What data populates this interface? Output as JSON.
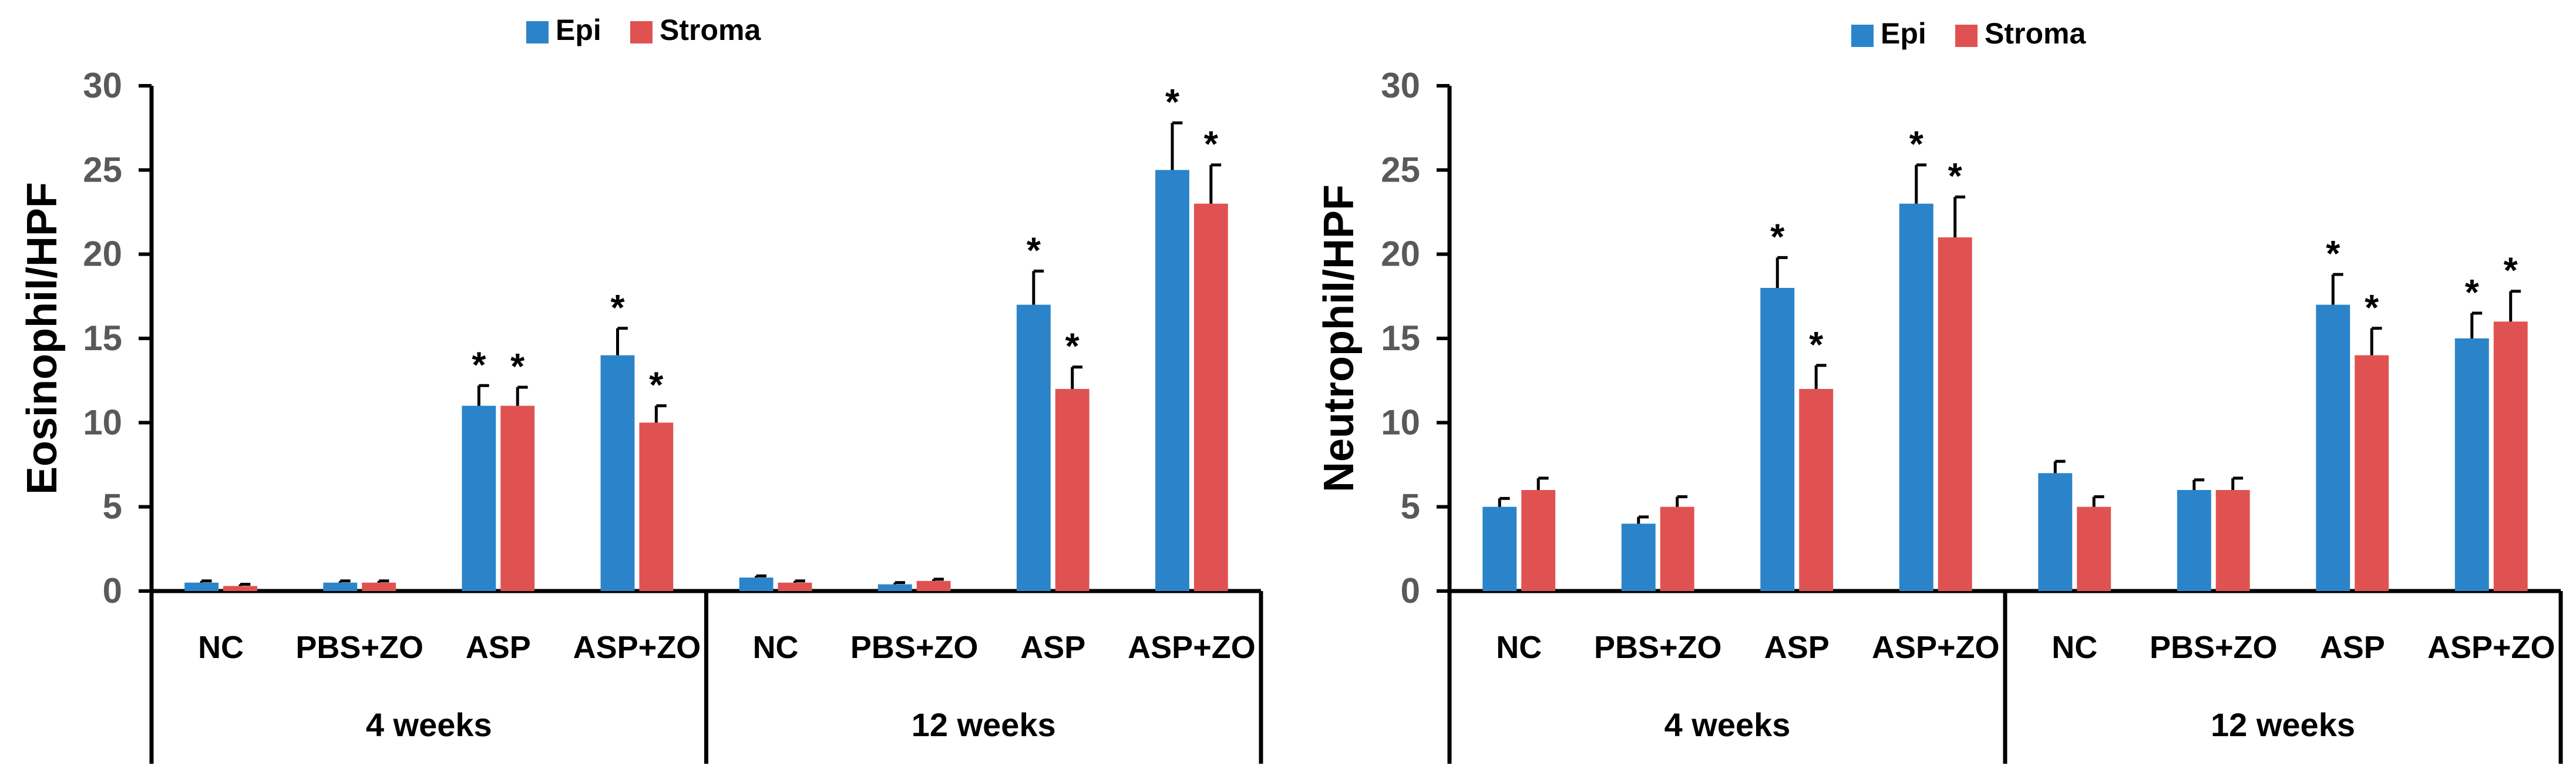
{
  "chart_data": [
    {
      "type": "bar",
      "ylabel": "Eosinophil/HPF",
      "ylim": [
        0,
        30
      ],
      "yticks": [
        0,
        5,
        10,
        15,
        20,
        25,
        30
      ],
      "groups": [
        {
          "label": "4 weeks",
          "categories": [
            "NC",
            "PBS+ZO",
            "ASP",
            "ASP+ZO"
          ]
        },
        {
          "label": "12 weeks",
          "categories": [
            "NC",
            "PBS+ZO",
            "ASP",
            "ASP+ZO"
          ]
        }
      ],
      "series": [
        {
          "name": "Epi",
          "color": "#2b84c9",
          "values": [
            0.5,
            0.5,
            11,
            14,
            0.8,
            0.4,
            17,
            25
          ],
          "errors": [
            0.1,
            0.1,
            1.2,
            1.6,
            0.1,
            0.1,
            2.0,
            2.8
          ],
          "significant": [
            false,
            false,
            true,
            true,
            false,
            false,
            true,
            true
          ]
        },
        {
          "name": "Stroma",
          "color": "#e05252",
          "values": [
            0.3,
            0.5,
            11,
            10,
            0.5,
            0.6,
            12,
            23
          ],
          "errors": [
            0.1,
            0.1,
            1.1,
            1.0,
            0.1,
            0.1,
            1.3,
            2.3
          ],
          "significant": [
            false,
            false,
            true,
            true,
            false,
            false,
            true,
            true
          ]
        }
      ],
      "significance_marker": "*",
      "legend": "top-center"
    },
    {
      "type": "bar",
      "ylabel": "Neutrophil/HPF",
      "ylim": [
        0,
        30
      ],
      "yticks": [
        0,
        5,
        10,
        15,
        20,
        25,
        30
      ],
      "groups": [
        {
          "label": "4 weeks",
          "categories": [
            "NC",
            "PBS+ZO",
            "ASP",
            "ASP+ZO"
          ]
        },
        {
          "label": "12 weeks",
          "categories": [
            "NC",
            "PBS+ZO",
            "ASP",
            "ASP+ZO"
          ]
        }
      ],
      "series": [
        {
          "name": "Epi",
          "color": "#2b84c9",
          "values": [
            5,
            4,
            18,
            23,
            7,
            6,
            17,
            15
          ],
          "errors": [
            0.5,
            0.4,
            1.8,
            2.3,
            0.7,
            0.6,
            1.8,
            1.5
          ],
          "significant": [
            false,
            false,
            true,
            true,
            false,
            false,
            true,
            true
          ]
        },
        {
          "name": "Stroma",
          "color": "#e05252",
          "values": [
            6,
            5,
            12,
            21,
            5,
            6,
            14,
            16
          ],
          "errors": [
            0.7,
            0.6,
            1.4,
            2.4,
            0.6,
            0.7,
            1.6,
            1.8
          ],
          "significant": [
            false,
            false,
            true,
            true,
            false,
            false,
            true,
            true
          ]
        }
      ],
      "significance_marker": "*",
      "legend": "top-center"
    }
  ]
}
